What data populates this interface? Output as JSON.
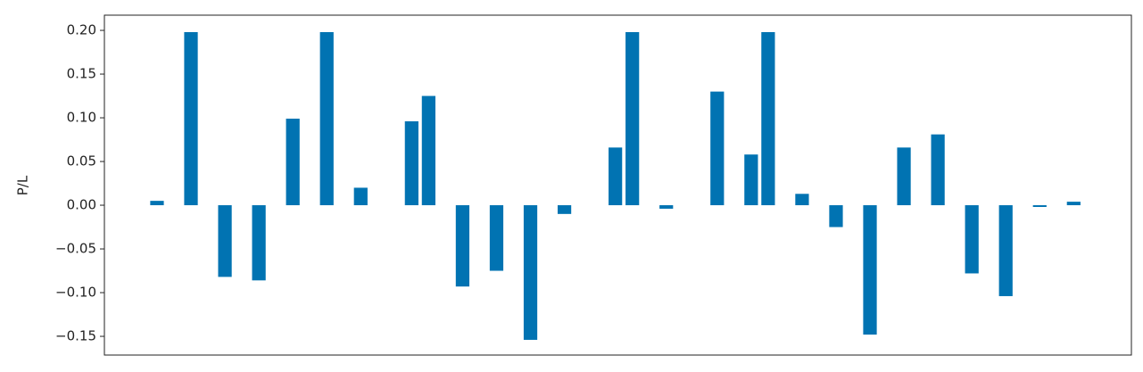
{
  "chart_data": {
    "type": "bar",
    "ylabel": "P/L",
    "categories": [
      null,
      null,
      null,
      null,
      null,
      null,
      null,
      null,
      null,
      null,
      null,
      null,
      null,
      null,
      null,
      null,
      null,
      null,
      null,
      null,
      null,
      null,
      null,
      null,
      null,
      null,
      null,
      null,
      null,
      null,
      null,
      null,
      null,
      null,
      null,
      null,
      null,
      null,
      null,
      null,
      null,
      null,
      null,
      null,
      null,
      null,
      null,
      null,
      null,
      null,
      null,
      null,
      null,
      null,
      null
    ],
    "values": [
      0.005,
      null,
      0.198,
      null,
      -0.082,
      null,
      -0.086,
      null,
      0.099,
      null,
      0.198,
      null,
      0.02,
      null,
      null,
      0.096,
      0.125,
      null,
      -0.093,
      null,
      -0.075,
      null,
      -0.154,
      null,
      -0.01,
      null,
      null,
      0.066,
      0.198,
      null,
      -0.004,
      null,
      null,
      0.13,
      null,
      0.058,
      0.198,
      null,
      0.013,
      null,
      -0.025,
      null,
      -0.148,
      null,
      0.066,
      null,
      0.081,
      null,
      -0.078,
      null,
      -0.104,
      null,
      -0.002,
      null,
      0.004
    ],
    "color": "#0173b2",
    "ylim": [
      -0.1714,
      0.2174
    ],
    "yticks": [
      {
        "value": -0.15,
        "label": "−0.15"
      },
      {
        "value": -0.1,
        "label": "−0.10"
      },
      {
        "value": -0.05,
        "label": "−0.05"
      },
      {
        "value": 0,
        "label": "0.00"
      },
      {
        "value": 0.05,
        "label": "0.05"
      },
      {
        "value": 0.1,
        "label": "0.10"
      },
      {
        "value": 0.15,
        "label": "0.15"
      },
      {
        "value": 0.2,
        "label": "0.20"
      }
    ],
    "grid": false
  }
}
